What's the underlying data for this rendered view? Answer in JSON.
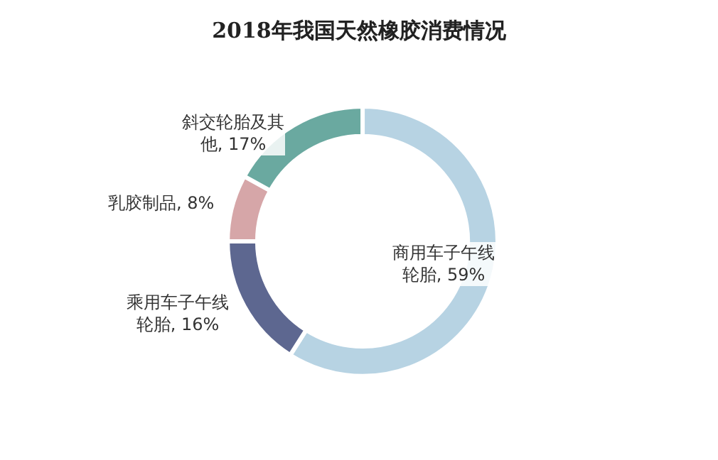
{
  "chart_data": {
    "type": "donut",
    "title": "2018年我国天然橡胶消费情况",
    "categories": [
      "商用车子午线轮胎",
      "乘用车子午线轮胎",
      "乳胶制品",
      "斜交轮胎及其他"
    ],
    "values": [
      59,
      16,
      8,
      17
    ],
    "value_labels": [
      "59%",
      "16%",
      "8%",
      "17%"
    ],
    "colors": [
      "#b7d3e3",
      "#5d6790",
      "#d6a6a8",
      "#6aa9a0"
    ],
    "legend": false
  }
}
